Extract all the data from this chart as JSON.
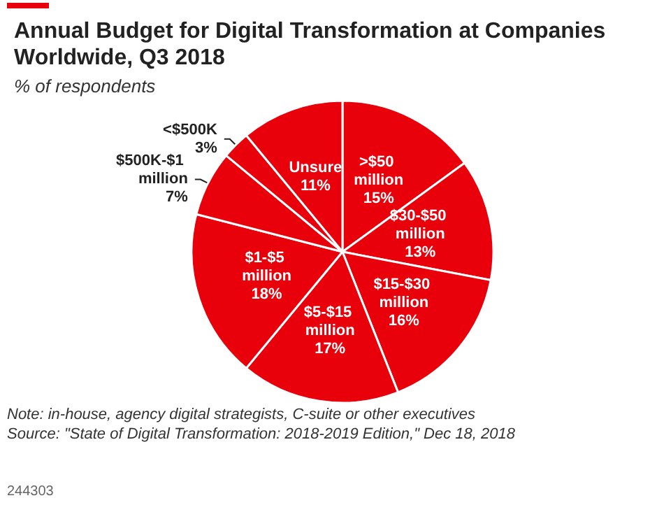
{
  "chart_data": {
    "type": "pie",
    "title": "Annual Budget for Digital Transformation at Companies Worldwide, Q3 2018",
    "subtitle": "% of respondents",
    "categories": [
      ">$50 million",
      "$30-$50 million",
      "$15-$30 million",
      "$5-$15 million",
      "$1-$5 million",
      "$500K-$1 million",
      "<$500K",
      "Unsure"
    ],
    "values": [
      15,
      13,
      16,
      17,
      18,
      7,
      3,
      11
    ],
    "value_labels": [
      "15%",
      "13%",
      "16%",
      "17%",
      "18%",
      "7%",
      "3%",
      "11%"
    ],
    "colors": [
      "#e8000b",
      "#e8000b",
      "#e8000b",
      "#e8000b",
      "#e8000b",
      "#e8000b",
      "#e8000b",
      "#e8000b"
    ],
    "annotations": [
      "Note: in-house, agency digital strategists, C-suite or other executives",
      "Source: \"State of Digital Transformation: 2018-2019 Edition,\" Dec 18, 2018",
      "244303"
    ],
    "legend": false
  }
}
